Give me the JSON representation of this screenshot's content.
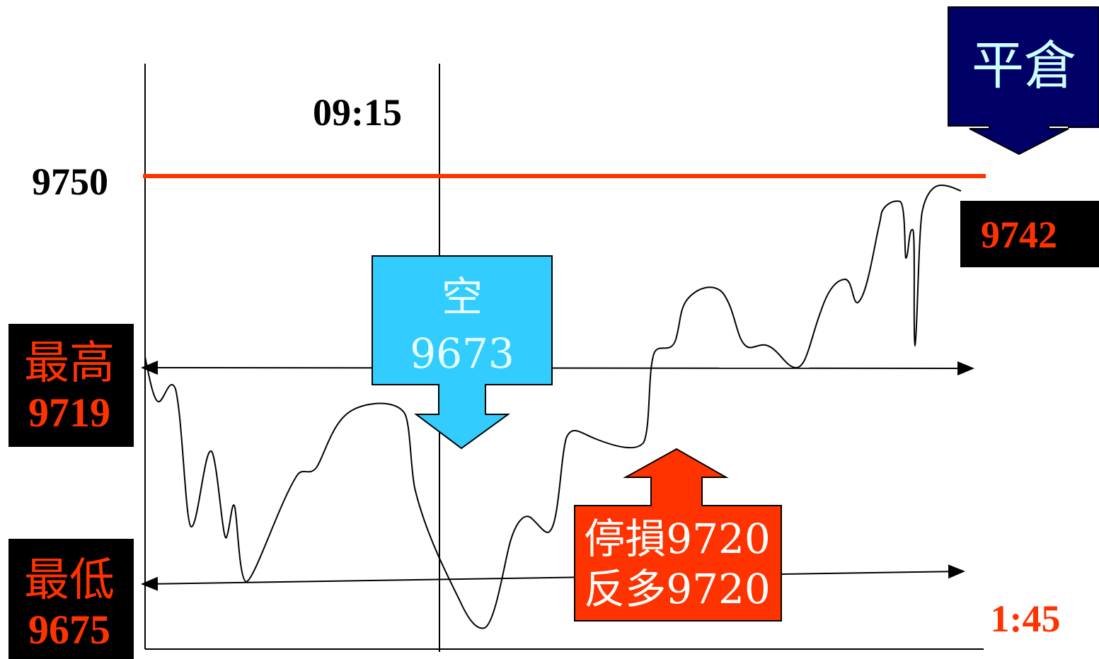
{
  "labels": {
    "time_start": "09:15",
    "time_end": "1:45",
    "level_9750": "9750",
    "close_value": "9742",
    "close_action": "平倉",
    "high_label": "最高",
    "high_value": "9719",
    "low_label": "最低",
    "low_value": "9675",
    "short_action": "空",
    "short_price": "9673",
    "stop_line1": "停損9720",
    "stop_line2": "反多9720"
  },
  "colors": {
    "resistance_line": "#ff3300",
    "red_text": "#ff3300",
    "close_box_bg": "#000000",
    "close_box_text": "#ff3300",
    "navy_arrow": "#000066",
    "navy_arrow_text": "#ccffff",
    "cyan_arrow": "#33ccff",
    "cyan_arrow_text": "#e6ffff",
    "orange_arrow": "#ff3300",
    "orange_arrow_text": "#ffffff",
    "black_box": "#000000"
  },
  "icons": [
    "down-arrow-icon",
    "up-arrow-icon"
  ]
}
